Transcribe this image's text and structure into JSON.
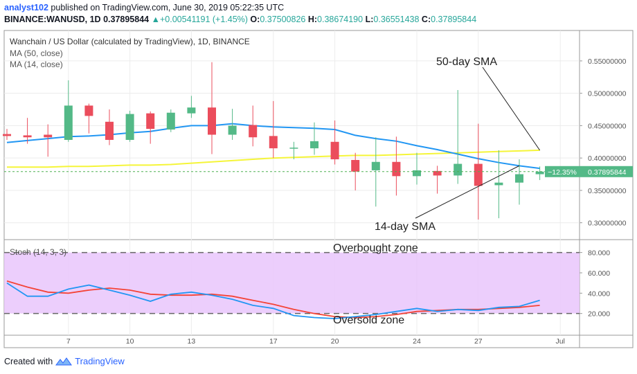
{
  "header": {
    "author": "analyst102",
    "published_text": " published on TradingView.com, June 30, 2019 05:22:35 UTC",
    "symbol": "BINANCE:WANUSD, 1D",
    "price": "0.37895844",
    "change_arrow": "▲",
    "change": "+0.00541191 (+1.45%)",
    "o_label": "O:",
    "o_value": "0.37500826",
    "h_label": "H:",
    "h_value": "0.38674190",
    "l_label": "L:",
    "l_value": "0.36551438",
    "c_label": "C:",
    "c_value": "0.37895844"
  },
  "footer": {
    "created_with": "Created with",
    "brand": "TradingView"
  },
  "colors": {
    "up": "#53b987",
    "down": "#eb4d5c",
    "ma50": "#f5f538",
    "ma14": "#2196f3",
    "stoch_k": "#2196f3",
    "stoch_d": "#f44336",
    "stoch_band": "#e9c5fb",
    "price_line": "#4caf50",
    "badge": "#53b987"
  },
  "chart_data": [
    {
      "type": "candlestick",
      "title": "Wanchain / US Dollar (calculated by TradingView), 1D, BINANCE",
      "indicators": [
        "MA (50, close)",
        "MA (14, close)"
      ],
      "x_ticks": [
        {
          "i": 3,
          "label": "7"
        },
        {
          "i": 6,
          "label": "10"
        },
        {
          "i": 9,
          "label": "13"
        },
        {
          "i": 13,
          "label": "17"
        },
        {
          "i": 16,
          "label": "20"
        },
        {
          "i": 20,
          "label": "24"
        },
        {
          "i": 23,
          "label": "27"
        },
        {
          "i": 27,
          "label": "Jul"
        }
      ],
      "y_ticks": [
        "0.55000000",
        "0.50000000",
        "0.45000000",
        "0.40000000",
        "0.35000000",
        "0.30000000"
      ],
      "ylim": [
        0.275,
        0.597
      ],
      "candles": [
        {
          "o": 0.437,
          "h": 0.445,
          "l": 0.428,
          "c": 0.434
        },
        {
          "o": 0.435,
          "h": 0.462,
          "l": 0.422,
          "c": 0.432
        },
        {
          "o": 0.436,
          "h": 0.452,
          "l": 0.402,
          "c": 0.432
        },
        {
          "o": 0.428,
          "h": 0.52,
          "l": 0.425,
          "c": 0.481
        },
        {
          "o": 0.481,
          "h": 0.484,
          "l": 0.438,
          "c": 0.465
        },
        {
          "o": 0.456,
          "h": 0.475,
          "l": 0.42,
          "c": 0.428
        },
        {
          "o": 0.428,
          "h": 0.473,
          "l": 0.425,
          "c": 0.468
        },
        {
          "o": 0.469,
          "h": 0.472,
          "l": 0.422,
          "c": 0.445
        },
        {
          "o": 0.444,
          "h": 0.475,
          "l": 0.44,
          "c": 0.47
        },
        {
          "o": 0.469,
          "h": 0.496,
          "l": 0.462,
          "c": 0.478
        },
        {
          "o": 0.478,
          "h": 0.548,
          "l": 0.406,
          "c": 0.436
        },
        {
          "o": 0.436,
          "h": 0.476,
          "l": 0.428,
          "c": 0.45
        },
        {
          "o": 0.451,
          "h": 0.481,
          "l": 0.418,
          "c": 0.432
        },
        {
          "o": 0.434,
          "h": 0.488,
          "l": 0.4,
          "c": 0.415
        },
        {
          "o": 0.415,
          "h": 0.425,
          "l": 0.398,
          "c": 0.416
        },
        {
          "o": 0.415,
          "h": 0.455,
          "l": 0.405,
          "c": 0.426
        },
        {
          "o": 0.425,
          "h": 0.458,
          "l": 0.39,
          "c": 0.398
        },
        {
          "o": 0.397,
          "h": 0.408,
          "l": 0.35,
          "c": 0.379
        },
        {
          "o": 0.381,
          "h": 0.432,
          "l": 0.325,
          "c": 0.394
        },
        {
          "o": 0.394,
          "h": 0.433,
          "l": 0.342,
          "c": 0.372
        },
        {
          "o": 0.372,
          "h": 0.408,
          "l": 0.359,
          "c": 0.381
        },
        {
          "o": 0.38,
          "h": 0.388,
          "l": 0.345,
          "c": 0.373
        },
        {
          "o": 0.373,
          "h": 0.505,
          "l": 0.36,
          "c": 0.391
        },
        {
          "o": 0.391,
          "h": 0.453,
          "l": 0.305,
          "c": 0.357
        },
        {
          "o": 0.358,
          "h": 0.412,
          "l": 0.307,
          "c": 0.362
        },
        {
          "o": 0.362,
          "h": 0.398,
          "l": 0.328,
          "c": 0.375
        },
        {
          "o": 0.375,
          "h": 0.387,
          "l": 0.366,
          "c": 0.379
        }
      ],
      "ma50": [
        0.386,
        0.386,
        0.386,
        0.387,
        0.387,
        0.388,
        0.389,
        0.389,
        0.39,
        0.392,
        0.394,
        0.396,
        0.398,
        0.4,
        0.401,
        0.402,
        0.403,
        0.404,
        0.404,
        0.405,
        0.406,
        0.407,
        0.408,
        0.409,
        0.41,
        0.411,
        0.412
      ],
      "ma14": [
        0.424,
        0.427,
        0.43,
        0.433,
        0.434,
        0.436,
        0.439,
        0.441,
        0.446,
        0.45,
        0.45,
        0.453,
        0.45,
        0.448,
        0.447,
        0.446,
        0.444,
        0.435,
        0.43,
        0.426,
        0.419,
        0.413,
        0.406,
        0.399,
        0.393,
        0.388,
        0.384
      ],
      "last_price_label": "0.37895844",
      "change_badge": "−12.35%",
      "annotations": [
        {
          "text": "50-day SMA",
          "pointer_i": 26.0,
          "pointer_v": 0.412
        },
        {
          "text": "14-day SMA",
          "pointer_i": 25.0,
          "pointer_v": 0.388
        }
      ]
    },
    {
      "type": "line",
      "title": "Stoch (14, 3, 3)",
      "y_ticks": [
        "80.000",
        "60.000",
        "40.000",
        "20.000"
      ],
      "ylim": [
        0,
        92
      ],
      "band": [
        20,
        80
      ],
      "k": [
        50,
        37,
        37,
        44,
        48,
        43,
        38,
        32,
        39,
        41,
        38,
        34,
        28,
        25,
        18,
        16,
        15,
        17,
        19,
        22,
        25,
        22,
        24,
        23,
        26,
        27,
        33
      ],
      "d": [
        52,
        46,
        41,
        40,
        43,
        45,
        43,
        39,
        38,
        38,
        39,
        37,
        33,
        29,
        24,
        20,
        17,
        16,
        17,
        19,
        22,
        23,
        24,
        24,
        25,
        26,
        28
      ],
      "annotations": [
        {
          "text": "Overbought zone",
          "v": 80
        },
        {
          "text": "Oversold zone",
          "v": 20
        }
      ]
    }
  ]
}
